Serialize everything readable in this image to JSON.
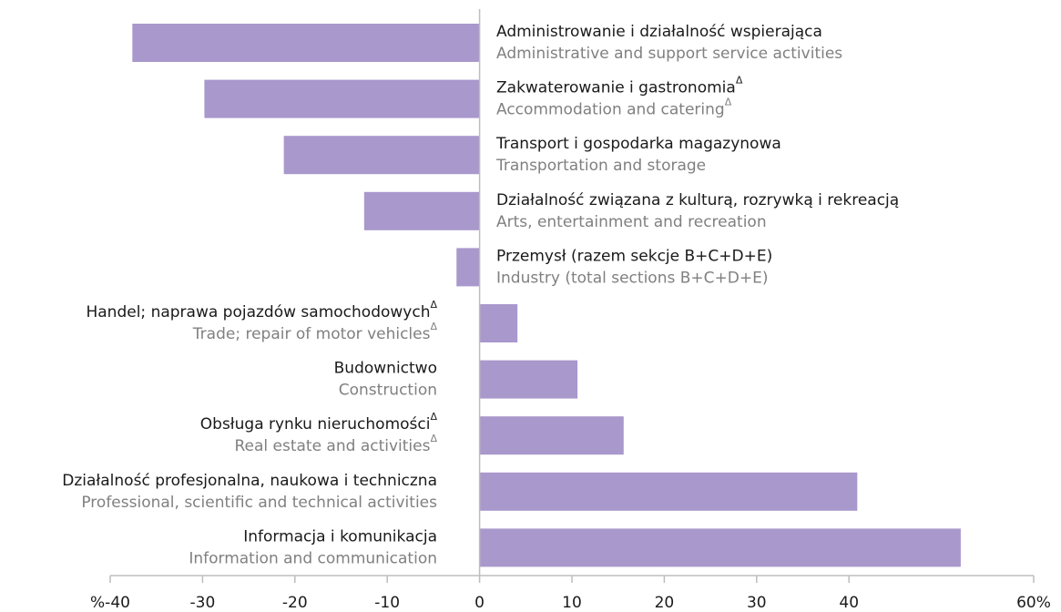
{
  "chart_data": {
    "type": "bar",
    "orientation": "horizontal",
    "categories": [
      "Administrowanie i działalność wspierająca",
      "Zakwaterowanie i gastronomia",
      "Transport i gospodarka magazynowa",
      "Działalność związana z kulturą, rozrywką i rekreacją",
      "Przemysł (razem sekcje B+C+D+E)",
      "Handel; naprawa pojazdów samochodowych",
      "Budownictwo",
      "Obsługa rynku nieruchomości",
      "Działalność profesjonalna, naukowa i techniczna",
      "Informacja i komunikacja"
    ],
    "categories_en": [
      "Administrative and support service activities",
      "Accommodation and catering",
      "Transportation and storage",
      "Arts, entertainment and recreation",
      "Industry (total sections B+C+D+E)",
      "Trade; repair of motor vehicles",
      "Construction",
      "Real estate and activities",
      "Professional, scientific and technical activities",
      "Information and communication"
    ],
    "footnote_marks": [
      null,
      "Δ",
      null,
      null,
      null,
      "Δ",
      null,
      "Δ",
      null,
      null
    ],
    "values": [
      -37.6,
      -29.8,
      -21.2,
      -12.5,
      -2.5,
      4.1,
      10.6,
      15.6,
      40.9,
      52.1
    ],
    "color": "#a898cc",
    "xlim": [
      -40,
      60
    ],
    "xticks": [
      {
        "value": -40,
        "label": "%-40"
      },
      -30,
      -20,
      -10,
      0,
      10,
      20,
      30,
      40,
      {
        "value": 60,
        "label": "60%"
      }
    ]
  }
}
